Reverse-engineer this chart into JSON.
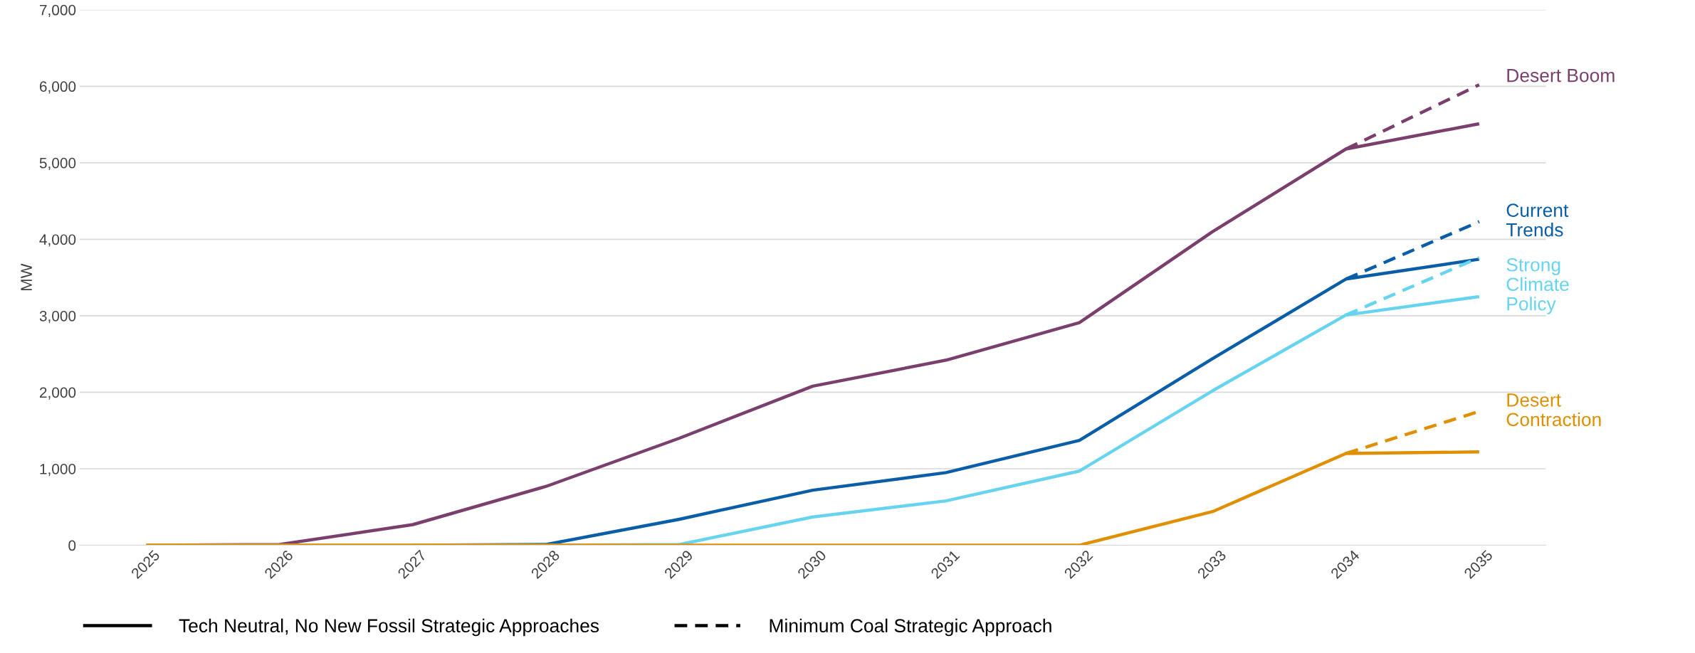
{
  "chart_data": {
    "type": "line",
    "ylabel": "MW",
    "categories": [
      "2025",
      "2026",
      "2027",
      "2028",
      "2029",
      "2030",
      "2031",
      "2032",
      "2033",
      "2034",
      "2035"
    ],
    "ylim": [
      0,
      7000
    ],
    "yticks": [
      {
        "value": 0,
        "label": "0"
      },
      {
        "value": 1000,
        "label": "1,000"
      },
      {
        "value": 2000,
        "label": "2,000"
      },
      {
        "value": 3000,
        "label": "3,000"
      },
      {
        "value": 4000,
        "label": "4,000"
      },
      {
        "value": 5000,
        "label": "5,000"
      },
      {
        "value": 6000,
        "label": "6,000"
      },
      {
        "value": 7000,
        "label": "7,000"
      }
    ],
    "grid": "y",
    "legend": "bottom",
    "marker": "none",
    "series": [
      {
        "name": "Desert Boom",
        "color": "#7b3f6e",
        "line_style": "solid",
        "values": [
          0,
          10,
          270,
          770,
          1400,
          2080,
          2420,
          2910,
          4100,
          5180,
          5510
        ]
      },
      {
        "name": "Current\nTrends",
        "color": "#0a5ea8",
        "line_style": "solid",
        "values": [
          null,
          null,
          0,
          10,
          340,
          720,
          950,
          1370,
          2440,
          3480,
          3740
        ]
      },
      {
        "name": "Strong\nClimate\nPolicy",
        "color": "#67d4ef",
        "line_style": "solid",
        "values": [
          0,
          0,
          0,
          0,
          10,
          370,
          580,
          970,
          2020,
          3010,
          3250
        ]
      },
      {
        "name": "Desert\nContraction",
        "color": "#e08f00",
        "line_style": "solid",
        "values": [
          0,
          0,
          0,
          0,
          0,
          0,
          0,
          0,
          440,
          1200,
          1220
        ]
      },
      {
        "color": "#7b3f6e",
        "line_style": "dashed",
        "values": [
          null,
          null,
          null,
          null,
          null,
          null,
          null,
          null,
          null,
          5180,
          6020
        ]
      },
      {
        "color": "#0a5ea8",
        "line_style": "dashed",
        "values": [
          null,
          null,
          null,
          null,
          null,
          null,
          null,
          null,
          null,
          3480,
          4230
        ]
      },
      {
        "color": "#67d4ef",
        "line_style": "dashed",
        "values": [
          null,
          null,
          null,
          null,
          null,
          null,
          null,
          null,
          null,
          3010,
          3760
        ]
      },
      {
        "color": "#e08f00",
        "line_style": "dashed",
        "values": [
          null,
          null,
          null,
          null,
          null,
          null,
          null,
          null,
          null,
          1200,
          1750
        ]
      },
      {
        "name": "Tech Neutral, No New Fossil Strategic Approaches",
        "color": "#000000",
        "line_style": "solid",
        "values": [
          null,
          null,
          null,
          null,
          null,
          null,
          null,
          null,
          null,
          null,
          null
        ]
      },
      {
        "name": "Minimum Coal Strategic Approach",
        "color": "#000000",
        "line_style": "dashed",
        "values": [
          null,
          null,
          null,
          null,
          null,
          null,
          null,
          null,
          null,
          null,
          null
        ]
      }
    ]
  }
}
